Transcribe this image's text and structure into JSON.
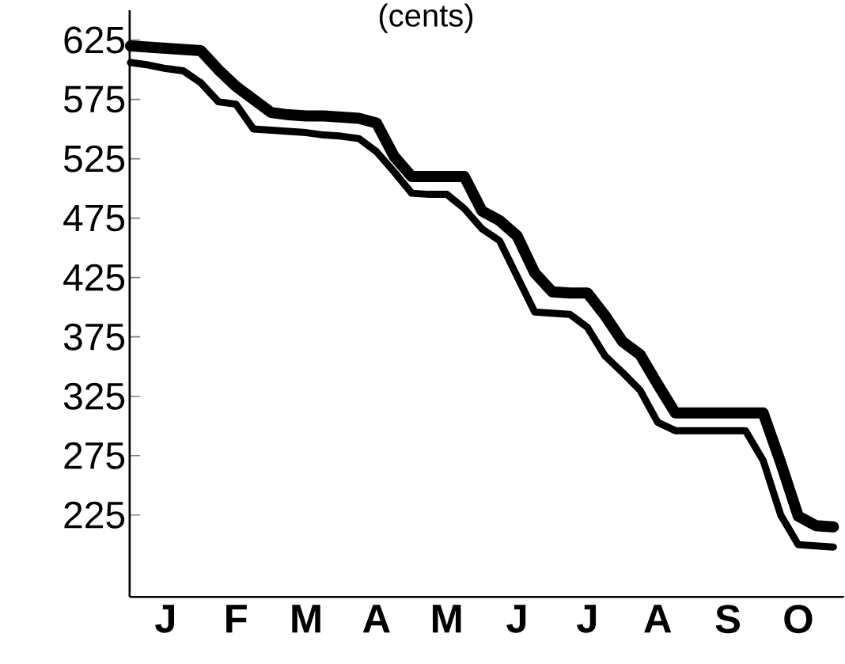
{
  "chart_data": {
    "type": "line",
    "title": "(cents)",
    "categories": [
      null,
      null,
      "J",
      null,
      null,
      null,
      "F",
      null,
      null,
      null,
      "M",
      null,
      null,
      null,
      "A",
      null,
      null,
      null,
      "M",
      null,
      null,
      null,
      "J",
      null,
      null,
      null,
      "J",
      null,
      null,
      null,
      "A",
      null,
      null,
      null,
      "S",
      null,
      null,
      null,
      "O",
      null,
      null
    ],
    "ylim": [
      156,
      650
    ],
    "yticks": [
      225,
      275,
      325,
      375,
      425,
      475,
      525,
      575,
      625
    ],
    "marker": "none",
    "line_style": "solid",
    "series": [
      {
        "color": "#000000",
        "values": [
          620,
          619,
          618,
          617,
          616,
          600,
          586,
          575,
          564,
          562,
          561,
          561,
          560,
          559,
          555,
          527,
          510,
          510,
          510,
          510,
          481,
          473,
          460,
          429,
          413,
          412,
          412,
          393,
          371,
          360,
          335,
          311,
          311,
          311,
          311,
          311,
          311,
          269,
          224,
          216,
          215
        ]
      },
      {
        "color": "#000000",
        "values": [
          606,
          604,
          601,
          599,
          589,
          573,
          571,
          550,
          549,
          548,
          547,
          545,
          544,
          542,
          531,
          514,
          496,
          495,
          495,
          483,
          466,
          456,
          426,
          396,
          395,
          394,
          383,
          359,
          345,
          330,
          303,
          296,
          296,
          296,
          296,
          296,
          271,
          225,
          200,
          199,
          198
        ]
      }
    ]
  }
}
